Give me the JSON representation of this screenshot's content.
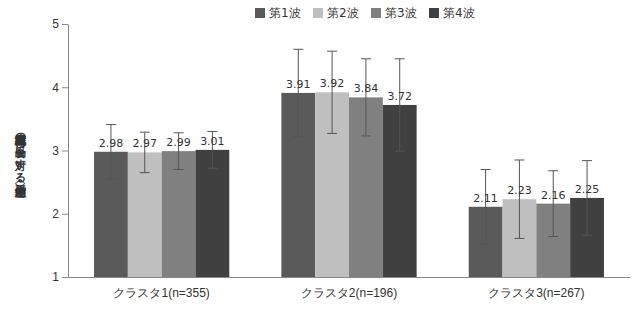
{
  "chart_data": {
    "type": "bar",
    "ylabel": "放射線災害地域の食品に対する態度（平均値）",
    "categories": [
      "クラスタ1(n=355)",
      "クラスタ2(n=196)",
      "クラスタ3(n=267)"
    ],
    "series": [
      {
        "name": "第1波",
        "color": "#5a5a5a",
        "values": [
          2.98,
          3.91,
          2.11
        ],
        "errors": [
          0.43,
          0.69,
          0.59
        ]
      },
      {
        "name": "第2波",
        "color": "#bfbfbf",
        "values": [
          2.97,
          3.92,
          2.23
        ],
        "errors": [
          0.32,
          0.65,
          0.62
        ]
      },
      {
        "name": "第3波",
        "color": "#808080",
        "values": [
          2.99,
          3.84,
          2.16
        ],
        "errors": [
          0.29,
          0.61,
          0.52
        ]
      },
      {
        "name": "第4波",
        "color": "#404040",
        "values": [
          3.01,
          3.72,
          2.25
        ],
        "errors": [
          0.29,
          0.73,
          0.59
        ]
      }
    ],
    "ylim": [
      1,
      5
    ],
    "yticks": [
      1,
      2,
      3,
      4,
      5
    ],
    "grid": false,
    "legend": "top",
    "data_labels": true
  }
}
